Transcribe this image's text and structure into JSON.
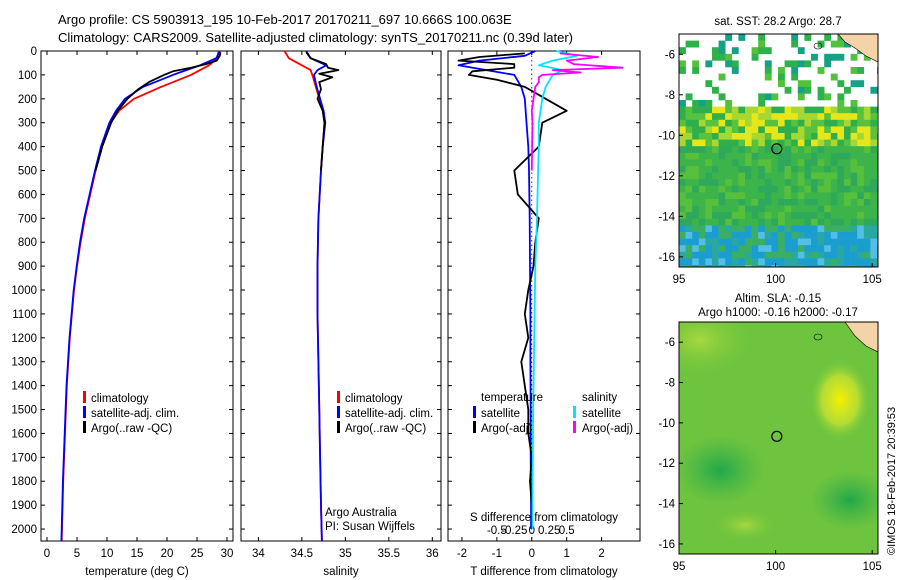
{
  "header": {
    "line1": "Argo profile: CS 5903913_195 10-Feb-2017 20170211_697 10.666S 100.063E",
    "line2": "Climatology: CARS2009. Satellite-adjusted climatology: synTS_20170211.nc (0.39d later)"
  },
  "colors": {
    "climatology": "#ff0000",
    "satellite": "#0000ff",
    "argo": "#000000",
    "sat_salinity": "#00e5ff",
    "argo_salinity_diff": "#ff00ff"
  },
  "depth_axis": {
    "range": [
      0,
      2050
    ],
    "ticks": [
      0,
      100,
      200,
      300,
      400,
      500,
      600,
      700,
      800,
      900,
      1000,
      1100,
      1200,
      1300,
      1400,
      1500,
      1600,
      1700,
      1800,
      1900,
      2000
    ]
  },
  "legend": {
    "climatology": "climatology",
    "satellite_adj": "satellite-adj. clim.",
    "argo_raw": "Argo(..raw -QC)",
    "diff_temperature": "temperature",
    "diff_salinity": "salinity",
    "diff_satellite": "satellite",
    "diff_argo": "Argo(-adj)"
  },
  "annotations": {
    "org": "Argo Australia",
    "pi": "PI: Susan Wijffels"
  },
  "sst_title": "sat. SST: 28.2  Argo: 28.7",
  "sla_title1": "Altim. SLA: -0.15",
  "sla_title2": "Argo h1000: -0.16  h2000: -0.17",
  "stamp": "©IMOS 18-Feb-2017 20:39:53",
  "chart_data": [
    {
      "type": "line",
      "name": "temperature-profile",
      "xlabel": "temperature (deg C)",
      "xlim": [
        -1,
        31
      ],
      "ylim": [
        2050,
        0
      ],
      "xticks": [
        0,
        5,
        10,
        15,
        20,
        25,
        30
      ],
      "series": [
        {
          "key": "climatology",
          "y": [
            0,
            30,
            60,
            100,
            150,
            200,
            250,
            300,
            400,
            500,
            600,
            700,
            800,
            900,
            1000,
            1200,
            1400,
            1600,
            1800,
            2000,
            2050
          ],
          "x": [
            28.6,
            28.4,
            27,
            24,
            19,
            14.5,
            12,
            10.6,
            9.2,
            8.1,
            7.2,
            6.3,
            5.6,
            5.0,
            4.5,
            3.8,
            3.3,
            3.0,
            2.7,
            2.5,
            2.45
          ]
        },
        {
          "key": "satellite-adj",
          "y": [
            0,
            30,
            60,
            100,
            150,
            200,
            250,
            300,
            400,
            500,
            600,
            700,
            800,
            900,
            1000,
            1200,
            1400,
            1600,
            1800,
            2000,
            2050
          ],
          "x": [
            28.8,
            28.2,
            25.5,
            21,
            16,
            13,
            11.5,
            10.4,
            9.0,
            8.0,
            7.1,
            6.2,
            5.5,
            4.95,
            4.45,
            3.75,
            3.25,
            2.95,
            2.65,
            2.45,
            2.4
          ]
        },
        {
          "key": "argo",
          "y": [
            5,
            20,
            40,
            55,
            70,
            85,
            100,
            130,
            160,
            200,
            250,
            300,
            400,
            500
          ],
          "x": [
            28.9,
            28.8,
            28.3,
            26.5,
            24,
            21,
            19.5,
            17,
            15.2,
            13.4,
            11.8,
            10.7,
            9.2,
            8.1
          ]
        }
      ]
    },
    {
      "type": "line",
      "name": "salinity-profile",
      "xlabel": "salinity",
      "xlim": [
        33.8,
        36.1
      ],
      "ylim": [
        2050,
        0
      ],
      "xticks": [
        34,
        34.5,
        35,
        35.5,
        36
      ],
      "series": [
        {
          "key": "climatology",
          "y": [
            0,
            30,
            60,
            80,
            100,
            150,
            200,
            250,
            300,
            400,
            500,
            700,
            900,
            1100,
            1300,
            1500,
            1700,
            1900,
            2050
          ],
          "x": [
            34.3,
            34.35,
            34.5,
            34.6,
            34.62,
            34.66,
            34.7,
            34.74,
            34.76,
            34.74,
            34.72,
            34.69,
            34.68,
            34.68,
            34.69,
            34.7,
            34.71,
            34.72,
            34.73
          ]
        },
        {
          "key": "satellite-adj",
          "y": [
            0,
            30,
            60,
            80,
            100,
            150,
            200,
            250,
            300,
            400,
            500,
            700,
            900,
            1100,
            1300,
            1500,
            1700,
            1900,
            2050
          ],
          "x": [
            34.55,
            34.6,
            34.78,
            34.68,
            34.64,
            34.67,
            34.71,
            34.75,
            34.77,
            34.74,
            34.72,
            34.69,
            34.68,
            34.68,
            34.69,
            34.7,
            34.71,
            34.72,
            34.73
          ]
        },
        {
          "key": "argo",
          "y": [
            5,
            30,
            55,
            70,
            80,
            95,
            110,
            130,
            160,
            200,
            250,
            300,
            400,
            500
          ],
          "x": [
            34.55,
            34.6,
            34.78,
            34.8,
            34.92,
            34.7,
            34.85,
            34.7,
            34.72,
            34.68,
            34.74,
            34.76,
            34.74,
            34.72
          ]
        }
      ]
    },
    {
      "type": "line",
      "name": "difference-profile",
      "xlabel": "T difference from climatology",
      "xlabel_top": "S difference from climatology",
      "xlim": [
        -2.4,
        3.1
      ],
      "ylim": [
        2050,
        0
      ],
      "xticks": [
        -2,
        -1,
        0,
        1,
        2
      ],
      "xtick_labels": [
        "-2",
        "-1",
        "0",
        "1",
        "2"
      ],
      "top_ticks": [
        -1,
        -0.5,
        0,
        0.5,
        1
      ],
      "top_tick_labels": [
        "-0.5",
        "-0.25",
        "0",
        "0.25",
        "0.5"
      ],
      "series": [
        {
          "key": "satellite-T",
          "y": [
            0,
            20,
            40,
            60,
            80,
            100,
            150,
            200,
            300,
            400,
            500,
            700,
            900,
            1100,
            1300,
            1500,
            1700,
            1900,
            2000
          ],
          "x": [
            0.1,
            -0.2,
            -1.5,
            -2.1,
            -1.3,
            -0.5,
            -0.3,
            -0.2,
            -0.15,
            -0.1,
            -0.08,
            -0.06,
            -0.05,
            -0.04,
            -0.04,
            -0.03,
            -0.03,
            -0.02,
            -0.02
          ]
        },
        {
          "key": "argo-T",
          "y": [
            10,
            25,
            40,
            55,
            70,
            85,
            100,
            120,
            150,
            200,
            250,
            300,
            400,
            500,
            600,
            700,
            800,
            900,
            1000,
            1100,
            1200,
            1300,
            1400,
            1500,
            1600,
            1700,
            1800,
            1900,
            2000
          ],
          "x": [
            -0.2,
            -1.5,
            -2.1,
            -0.5,
            -0.5,
            -1.7,
            -1.8,
            -1.0,
            -0.2,
            0.4,
            1.0,
            0.3,
            0.2,
            -0.5,
            -0.4,
            0.2,
            0.1,
            0.05,
            -0.1,
            -0.2,
            -0.1,
            -0.3,
            -0.2,
            -0.1,
            -0.1,
            0,
            -0.05,
            0,
            0
          ]
        },
        {
          "key": "satellite-S",
          "y": [
            0,
            20,
            40,
            60,
            80,
            100,
            150,
            200,
            300,
            400,
            500,
            700,
            900,
            1100,
            1300,
            1500,
            1700,
            1900,
            2000
          ],
          "x": [
            0.7,
            1.3,
            0.6,
            0.2,
            0.9,
            0.6,
            0.4,
            0.3,
            0.2,
            0.2,
            0.18,
            0.15,
            0.1,
            0.08,
            0.06,
            0.04,
            0.03,
            0.02,
            0.02
          ]
        },
        {
          "key": "argo-S",
          "y": [
            10,
            25,
            40,
            55,
            70,
            80,
            90,
            100,
            110,
            130,
            150,
            200,
            250,
            300,
            400,
            500
          ],
          "x": [
            0.8,
            1.9,
            1.0,
            1.2,
            2.6,
            0.6,
            1.4,
            0.3,
            0.2,
            0.2,
            0.1,
            0.05,
            0,
            0.02,
            0.01,
            0
          ]
        }
      ]
    },
    {
      "type": "heatmap",
      "name": "sst-map",
      "title": "sat. SST: 28.2  Argo: 28.7",
      "xlim": [
        95,
        105.3
      ],
      "ylim": [
        -16.5,
        -5
      ],
      "xticks": [
        95,
        100,
        105
      ],
      "yticks": [
        -6,
        -8,
        -10,
        -12,
        -14,
        -16
      ],
      "argo_position": {
        "lon": 100.063,
        "lat": -10.666
      }
    },
    {
      "type": "heatmap",
      "name": "sla-map",
      "title": "Altim. SLA: -0.15",
      "xlim": [
        95,
        105.3
      ],
      "ylim": [
        -16.5,
        -5
      ],
      "xticks": [
        95,
        100,
        105
      ],
      "yticks": [
        -6,
        -8,
        -10,
        -12,
        -14,
        -16
      ],
      "argo_position": {
        "lon": 100.063,
        "lat": -10.666
      }
    }
  ]
}
